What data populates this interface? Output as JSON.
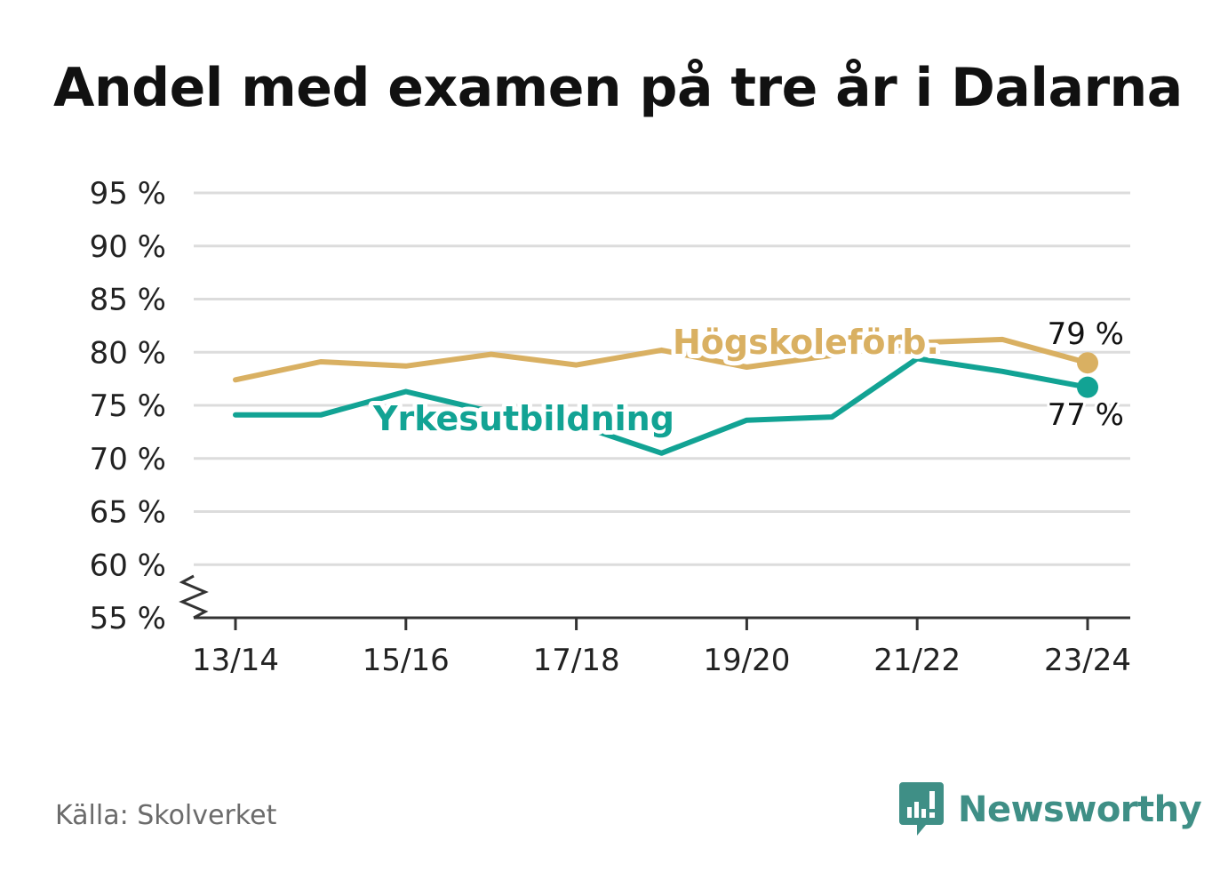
{
  "title": "Andel med examen på tre år i Dalarna",
  "source": "Källa: Skolverket",
  "brand": {
    "name": "Newsworthy",
    "icon": "bar-chart-speech-bubble-icon"
  },
  "colors": {
    "hogskole": "#d9b062",
    "yrkes": "#12a394",
    "grid": "#dcdcdc",
    "axis": "#333333"
  },
  "chart_data": {
    "type": "line",
    "title": "Andel med examen på tre år i Dalarna",
    "x": [
      "13/14",
      "14/15",
      "15/16",
      "16/17",
      "17/18",
      "18/19",
      "19/20",
      "20/21",
      "21/22",
      "22/23",
      "23/24"
    ],
    "x_tick_labels": [
      "13/14",
      "15/16",
      "17/18",
      "19/20",
      "21/22",
      "23/24"
    ],
    "y_tick_labels": [
      "95 %",
      "90 %",
      "85 %",
      "80 %",
      "75 %",
      "70 %",
      "65 %",
      "60 %",
      "55 %"
    ],
    "y_ticks": [
      95,
      90,
      85,
      80,
      75,
      70,
      65,
      60,
      55
    ],
    "ylim": [
      55,
      95
    ],
    "y_axis_break": true,
    "grid": true,
    "series": [
      {
        "name": "Högskoleförb.",
        "values": [
          77.4,
          79.1,
          78.7,
          79.8,
          78.8,
          80.2,
          78.6,
          79.7,
          80.9,
          81.2,
          79.0
        ],
        "end_label": "79 %"
      },
      {
        "name": "Yrkesutbildning",
        "values": [
          74.1,
          74.1,
          76.3,
          74.4,
          73.2,
          70.5,
          73.6,
          73.9,
          79.4,
          78.2,
          76.7
        ],
        "end_label": "77 %"
      }
    ]
  }
}
